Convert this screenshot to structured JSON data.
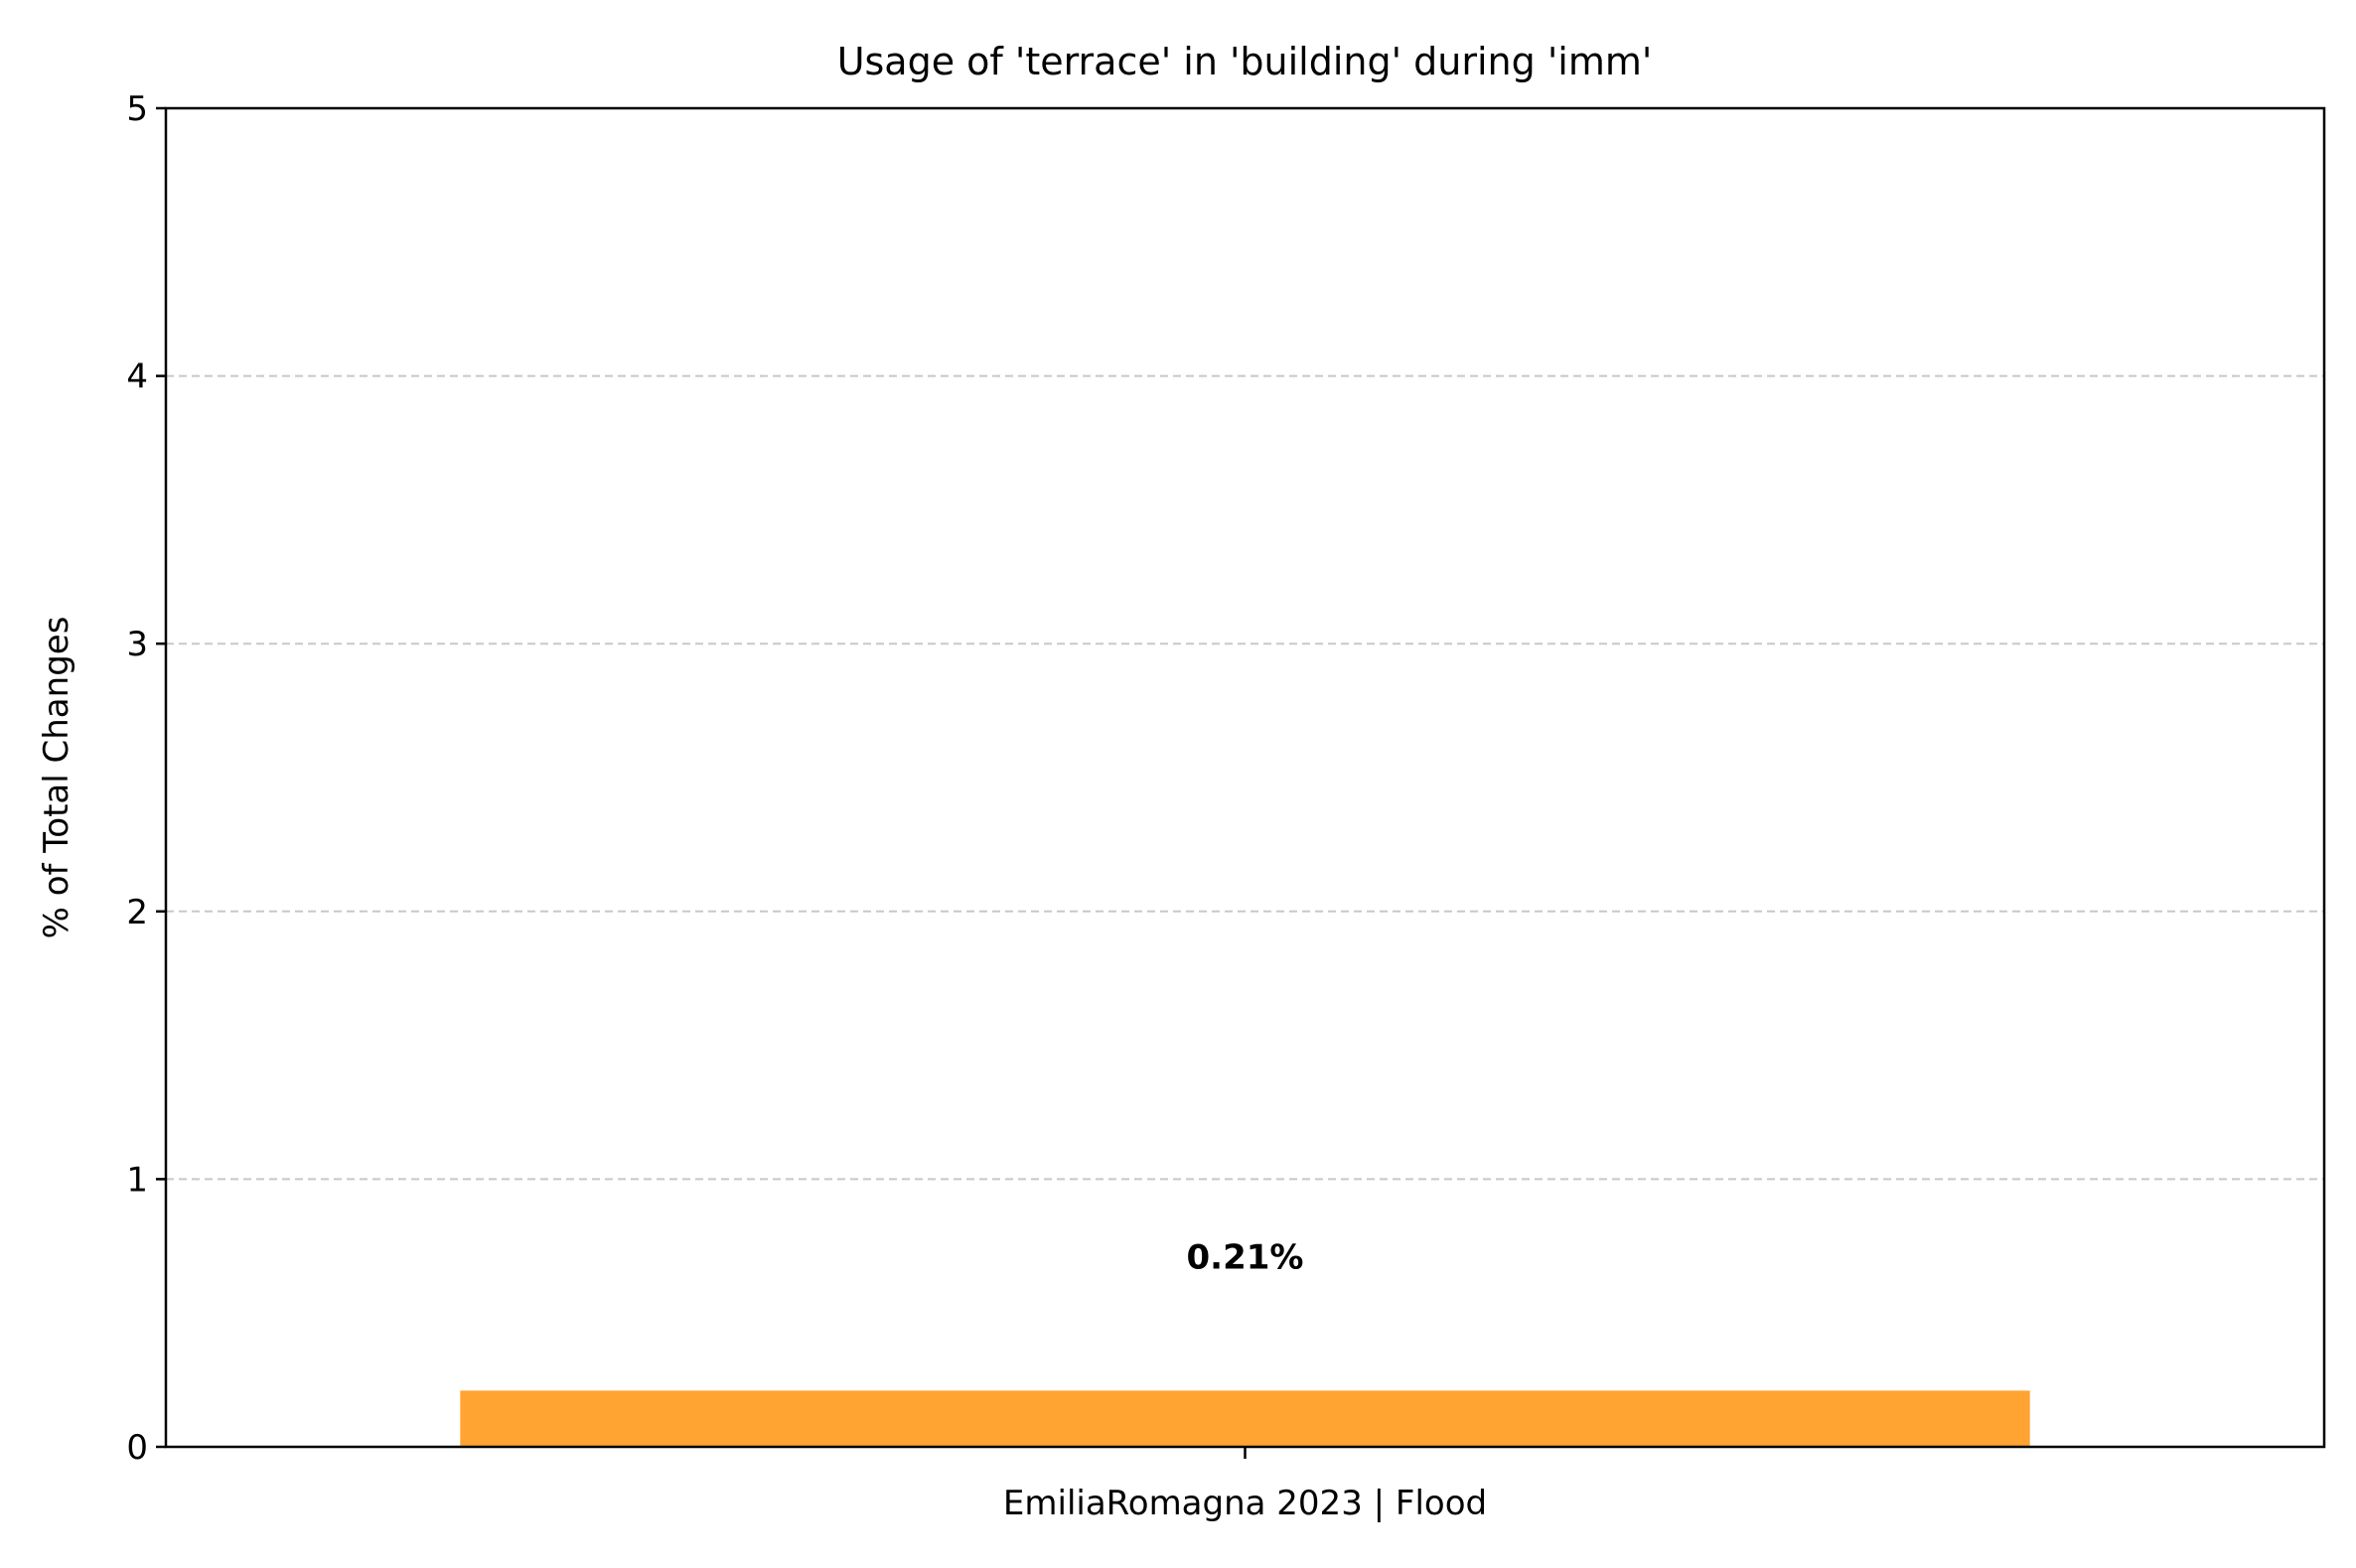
{
  "chart_data": {
    "type": "bar",
    "title": "Usage of 'terrace' in 'building' during 'imm'",
    "xlabel": "",
    "ylabel": "% of Total Changes",
    "categories": [
      "EmiliaRomagna 2023 | Flood"
    ],
    "values": [
      0.21
    ],
    "value_labels": [
      "0.21%"
    ],
    "ylim": [
      0,
      5
    ],
    "yticks": [
      0,
      1,
      2,
      3,
      4,
      5
    ],
    "ytick_labels": [
      "0",
      "1",
      "2",
      "3",
      "4",
      "5"
    ],
    "grid": "y-dashed",
    "legend": "none",
    "colors": {
      "bar": "#ffa332",
      "grid": "#c8c8c8",
      "axis": "#000000"
    }
  }
}
